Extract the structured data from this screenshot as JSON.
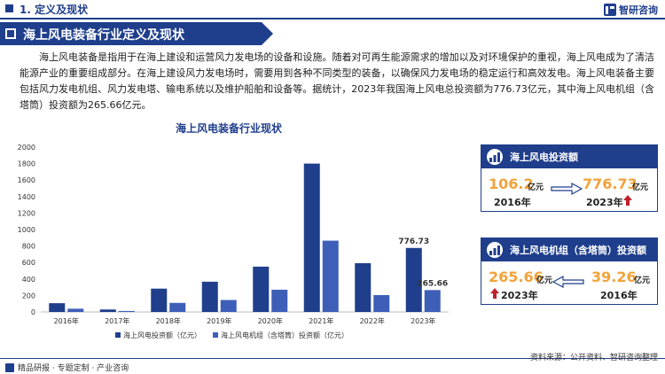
{
  "header": {
    "section_title": "1. 定义及现状",
    "brand": "智研咨询"
  },
  "banner": {
    "title": "海上风电装备行业定义及现状"
  },
  "intro": {
    "text": "海上风电装备是指用于在海上建设和运营风力发电场的设备和设施。随着对可再生能源需求的增加以及对环境保护的重视，海上风电成为了清洁能源产业的重要组成部分。在海上建设风力发电场时，需要用到各种不同类型的装备，以确保风力发电场的稳定运行和高效发电。海上风电装备主要包括风力发电机组、风力发电塔、输电系统以及维护船舶和设备等。据统计，2023年我国海上风电总投资额为776.73亿元，其中海上风电机组（含塔筒）投资额为265.66亿元。"
  },
  "chart_data": {
    "type": "bar",
    "title": "海上风电装备行业现状",
    "categories": [
      "2016年",
      "2017年",
      "2018年",
      "2019年",
      "2020年",
      "2021年",
      "2022年",
      "2023年"
    ],
    "series": [
      {
        "name": "海上风电投资额（亿元）",
        "color": "#1f3e8c",
        "values": [
          106.2,
          30,
          283,
          367,
          550,
          1800,
          592,
          776.73
        ]
      },
      {
        "name": "海上风电机组（含塔筒）投资额（亿元）",
        "color": "#3e5fb8",
        "values": [
          39.26,
          12,
          110,
          145,
          270,
          865,
          205,
          265.66
        ]
      }
    ],
    "ylim": [
      0,
      2000
    ],
    "yticks": [
      "0",
      "200",
      "400",
      "600",
      "800",
      "1000",
      "1200",
      "1400",
      "1600",
      "1800",
      "2000"
    ],
    "data_labels": {
      "776.73": "776.73",
      "265.66": "265.66"
    },
    "grid": false,
    "legend": "bottom"
  },
  "panel_investment": {
    "title": "海上风电投资额",
    "from_value": "106.2",
    "from_unit": "亿元",
    "from_year": "2016年",
    "to_value": "776.73",
    "to_unit": "亿元",
    "to_year": "2023年"
  },
  "panel_turbine": {
    "title": "海上风电机组（含塔筒）投资额",
    "from_value": "39.26",
    "from_unit": "亿元",
    "from_year": "2016年",
    "to_value": "265.66",
    "to_unit": "亿元",
    "to_year": "2023年"
  },
  "footer": {
    "tagline": "精品研报 · 专题定制 · 产业咨询",
    "source": "资料来源：公开资料、智研咨询整理"
  },
  "colors": {
    "primary": "#1f3e8c",
    "accent": "#f2a33a",
    "up_arrow": "#c0202a"
  }
}
